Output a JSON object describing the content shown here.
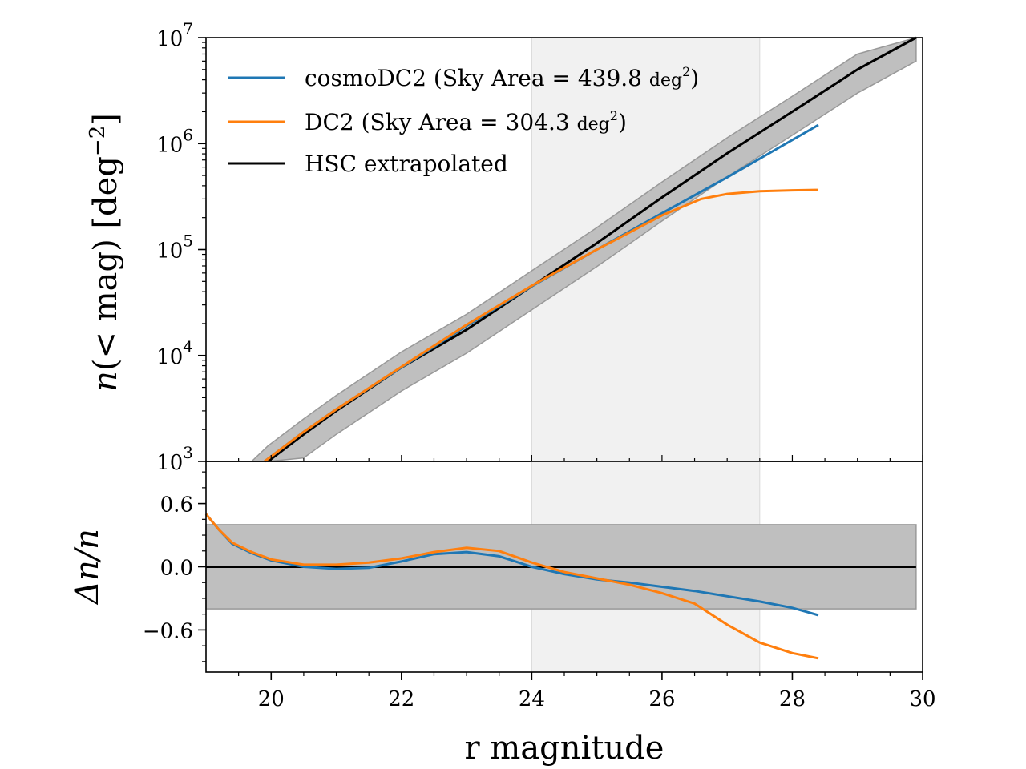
{
  "colors": {
    "cosmoDC2": "#1f77b4",
    "DC2": "#ff7f0e",
    "HSC": "#000000",
    "band_fill": "#bfbfbf",
    "band_edge": "#999999",
    "highlight": "#eeeeee"
  },
  "chart_data": [
    {
      "type": "line",
      "panel": "top",
      "yscale": "log",
      "xlim": [
        19,
        30
      ],
      "ylim": [
        1000,
        10000000
      ],
      "ylabel_parts": {
        "n": "n",
        "open": "(< mag) [deg",
        "exp": "−2",
        "close": "]"
      },
      "ytick_labels": [
        {
          "value": 1000,
          "base": "10",
          "exp": "3"
        },
        {
          "value": 10000,
          "base": "10",
          "exp": "4"
        },
        {
          "value": 100000,
          "base": "10",
          "exp": "5"
        },
        {
          "value": 1000000,
          "base": "10",
          "exp": "6"
        },
        {
          "value": 10000000,
          "base": "10",
          "exp": "7"
        }
      ],
      "highlight_range": [
        24,
        27.5
      ],
      "legend": [
        {
          "series": "cosmoDC2",
          "text": "cosmoDC2 (Sky Area = 439.8 ",
          "unit": "deg",
          "exp": "2",
          "close": ")"
        },
        {
          "series": "DC2",
          "text": "DC2 (Sky Area = 304.3 ",
          "unit": "deg",
          "exp": "2",
          "close": ")"
        },
        {
          "series": "HSC",
          "text": "HSC extrapolated",
          "unit": "",
          "exp": "",
          "close": ""
        }
      ],
      "series": [
        {
          "name": "cosmoDC2",
          "x": [
            19.9,
            20.5,
            21,
            22,
            23,
            24,
            25,
            26,
            27,
            28.4
          ],
          "y": [
            1000,
            1900,
            3100,
            7700,
            19000,
            45000,
            100000,
            220000,
            480000,
            1500000
          ]
        },
        {
          "name": "DC2",
          "x": [
            19.9,
            20.5,
            21,
            22,
            23,
            24,
            25,
            26,
            26.6,
            27,
            27.5,
            28,
            28.4
          ],
          "y": [
            1000,
            1900,
            3100,
            7800,
            19500,
            45500,
            100000,
            210000,
            300000,
            335000,
            355000,
            362000,
            365000
          ]
        },
        {
          "name": "HSC",
          "x": [
            19.95,
            20.5,
            21,
            22,
            23,
            24,
            25,
            26,
            27,
            28,
            29,
            29.9
          ],
          "y": [
            1000,
            1800,
            3000,
            7700,
            17500,
            45000,
            115000,
            310000,
            810000,
            2000000,
            5000000,
            10000000
          ],
          "band": {
            "lower": 0.6,
            "upper": 1.4
          }
        }
      ]
    },
    {
      "type": "line",
      "panel": "bottom",
      "xlim": [
        19,
        30
      ],
      "ylim": [
        -1.0,
        1.0
      ],
      "xlabel": "r magnitude",
      "ylabel": "Δn/n",
      "xticks": [
        "20",
        "22",
        "24",
        "26",
        "28",
        "30"
      ],
      "xtick_values": [
        20,
        22,
        24,
        26,
        28,
        30
      ],
      "yticks": [
        "−0.6",
        "0.0",
        "0.6"
      ],
      "ytick_values": [
        -0.6,
        0.0,
        0.6
      ],
      "band": [
        -0.4,
        0.4
      ],
      "band_xrange": [
        19,
        29.9
      ],
      "reference_line": 0.0,
      "highlight_range": [
        24,
        27.5
      ],
      "series": [
        {
          "name": "cosmoDC2",
          "x": [
            19,
            19.2,
            19.4,
            19.7,
            20,
            20.5,
            21,
            21.5,
            22,
            22.5,
            23,
            23.5,
            24,
            24.5,
            25,
            25.5,
            26,
            26.5,
            27,
            27.5,
            28,
            28.4
          ],
          "y": [
            0.5,
            0.35,
            0.22,
            0.13,
            0.06,
            0.0,
            -0.02,
            -0.01,
            0.05,
            0.12,
            0.14,
            0.1,
            0.0,
            -0.07,
            -0.12,
            -0.15,
            -0.19,
            -0.23,
            -0.28,
            -0.33,
            -0.39,
            -0.46
          ]
        },
        {
          "name": "DC2",
          "x": [
            19,
            19.2,
            19.4,
            19.7,
            20,
            20.5,
            21,
            21.5,
            22,
            22.5,
            23,
            23.5,
            24,
            24.5,
            25,
            25.5,
            26,
            26.5,
            27,
            27.5,
            28,
            28.4
          ],
          "y": [
            0.5,
            0.35,
            0.23,
            0.14,
            0.07,
            0.02,
            0.02,
            0.04,
            0.08,
            0.14,
            0.18,
            0.15,
            0.04,
            -0.05,
            -0.11,
            -0.17,
            -0.25,
            -0.35,
            -0.55,
            -0.72,
            -0.82,
            -0.87
          ]
        }
      ]
    }
  ]
}
